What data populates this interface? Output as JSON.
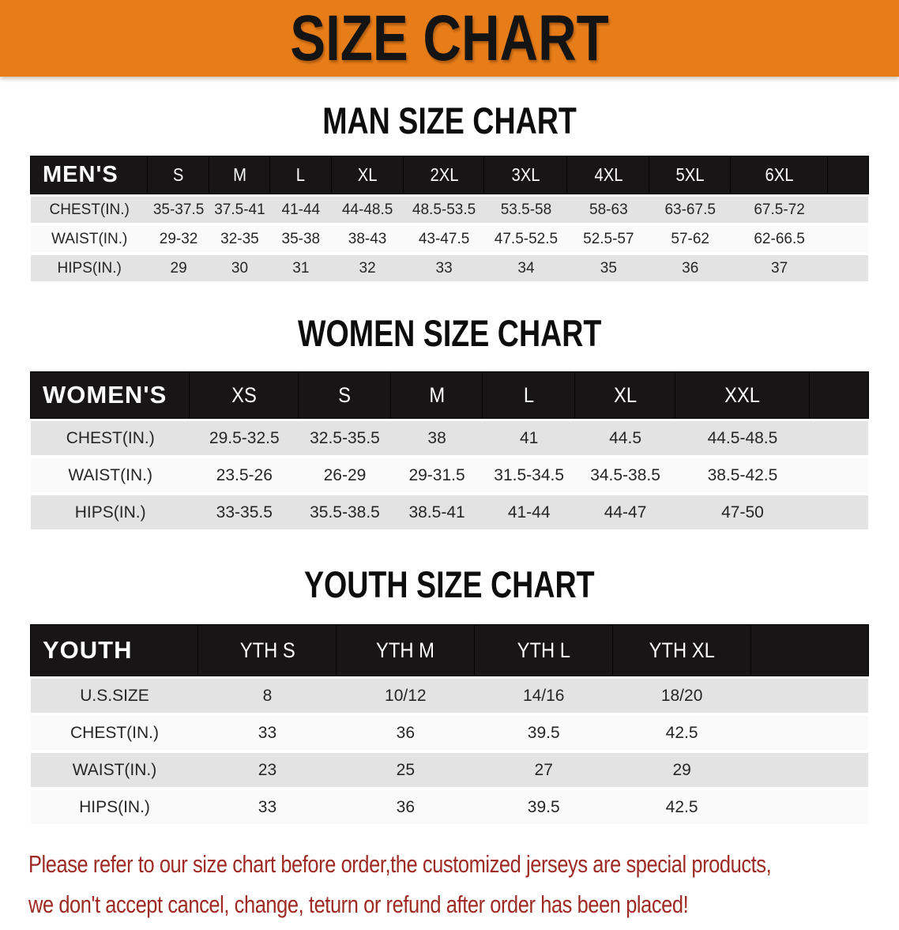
{
  "banner": {
    "title": "SIZE CHART",
    "bg_color": "#e77d18",
    "text_color": "#141414"
  },
  "sections": [
    {
      "id": "men",
      "title": "MAN SIZE CHART",
      "header_label": "MEN'S",
      "columns": [
        "S",
        "M",
        "L",
        "XL",
        "2XL",
        "3XL",
        "4XL",
        "5XL",
        "6XL"
      ],
      "rows": [
        {
          "label": "CHEST(IN.)",
          "values": [
            "35-37.5",
            "37.5-41",
            "41-44",
            "44-48.5",
            "48.5-53.5",
            "53.5-58",
            "58-63",
            "63-67.5",
            "67.5-72"
          ]
        },
        {
          "label": "WAIST(IN.)",
          "values": [
            "29-32",
            "32-35",
            "35-38",
            "38-43",
            "43-47.5",
            "47.5-52.5",
            "52.5-57",
            "57-62",
            "62-66.5"
          ]
        },
        {
          "label": "HIPS(IN.)",
          "values": [
            "29",
            "30",
            "31",
            "32",
            "33",
            "34",
            "35",
            "36",
            "37"
          ]
        }
      ]
    },
    {
      "id": "women",
      "title": "WOMEN SIZE CHART",
      "header_label": "WOMEN'S",
      "columns": [
        "XS",
        "S",
        "M",
        "L",
        "XL",
        "XXL"
      ],
      "rows": [
        {
          "label": "CHEST(IN.)",
          "values": [
            "29.5-32.5",
            "32.5-35.5",
            "38",
            "41",
            "44.5",
            "44.5-48.5"
          ]
        },
        {
          "label": "WAIST(IN.)",
          "values": [
            "23.5-26",
            "26-29",
            "29-31.5",
            "31.5-34.5",
            "34.5-38.5",
            "38.5-42.5"
          ]
        },
        {
          "label": "HIPS(IN.)",
          "values": [
            "33-35.5",
            "35.5-38.5",
            "38.5-41",
            "41-44",
            "44-47",
            "47-50"
          ]
        }
      ]
    },
    {
      "id": "youth",
      "title": "YOUTH SIZE CHART",
      "header_label": "YOUTH",
      "columns": [
        "YTH S",
        "YTH M",
        "YTH L",
        "YTH XL"
      ],
      "rows": [
        {
          "label": "U.S.SIZE",
          "values": [
            "8",
            "10/12",
            "14/16",
            "18/20"
          ]
        },
        {
          "label": "CHEST(IN.)",
          "values": [
            "33",
            "36",
            "39.5",
            "42.5"
          ]
        },
        {
          "label": "WAIST(IN.)",
          "values": [
            "23",
            "25",
            "27",
            "29"
          ]
        },
        {
          "label": "HIPS(IN.)",
          "values": [
            "33",
            "36",
            "39.5",
            "42.5"
          ]
        }
      ]
    }
  ],
  "disclaimer": {
    "line1": "Please refer to our size chart before order,the customized jerseys are special products,",
    "line2": "we don't accept cancel, change, teturn or refund after order has been placed!",
    "color": "#9e2a23"
  }
}
